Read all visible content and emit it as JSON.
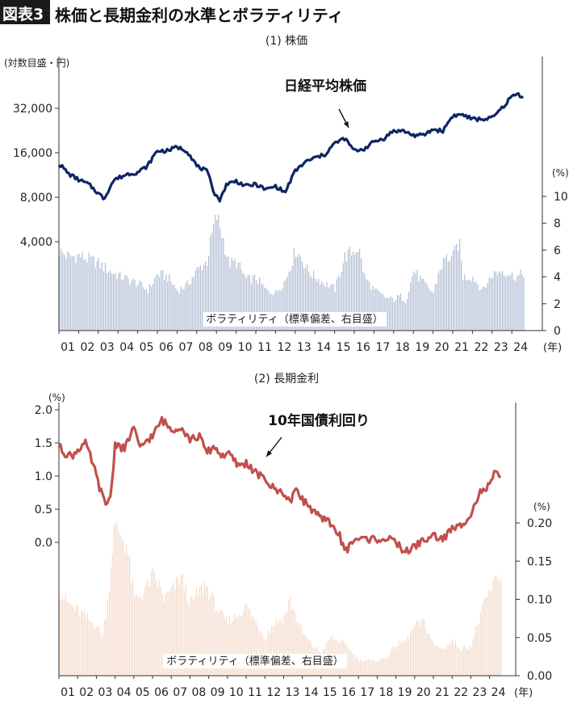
{
  "header": {
    "badge": "図表3",
    "title": "株価と長期金利の水準とボラティリティ"
  },
  "colors": {
    "stock_line": "#0d2563",
    "stock_bars": "#aab8d0",
    "rate_line": "#c0504d",
    "rate_bars": "#f3d9c8"
  },
  "chart_data": [
    {
      "type": "line",
      "title": "(1) 株価",
      "y_unit_label": "(対数目盛・円)",
      "y_scale": "log",
      "y_ticks": [
        "32,000",
        "16,000",
        "8,000",
        "4,000"
      ],
      "y_tick_values": [
        32000,
        16000,
        8000,
        4000
      ],
      "y_right_unit": "(%)",
      "y_right_ticks": [
        "10",
        "8",
        "6",
        "4",
        "2",
        "0"
      ],
      "y_right_range": [
        0,
        10
      ],
      "x_ticks": [
        "01",
        "02",
        "03",
        "04",
        "05",
        "06",
        "07",
        "08",
        "09",
        "10",
        "11",
        "12",
        "13",
        "14",
        "15",
        "16",
        "17",
        "18",
        "19",
        "20",
        "21",
        "22",
        "23",
        "24"
      ],
      "x_unit": "(年)",
      "line_label": "日経平均株価",
      "bar_label": "ボラティリティ（標準偏差、右目盛）",
      "x": [
        2001.0,
        2001.5,
        2002.0,
        2002.5,
        2003.0,
        2003.3,
        2003.8,
        2004.5,
        2005.0,
        2005.5,
        2006.0,
        2006.5,
        2007.0,
        2007.5,
        2008.0,
        2008.5,
        2008.9,
        2009.2,
        2009.5,
        2010.0,
        2010.5,
        2011.0,
        2011.5,
        2012.0,
        2012.5,
        2013.0,
        2013.5,
        2014.0,
        2014.5,
        2015.0,
        2015.5,
        2016.0,
        2016.5,
        2017.0,
        2017.5,
        2018.0,
        2018.5,
        2019.0,
        2019.5,
        2020.0,
        2020.5,
        2021.0,
        2021.5,
        2022.0,
        2022.5,
        2023.0,
        2023.5,
        2024.0,
        2024.3,
        2024.7
      ],
      "values": [
        13500,
        11500,
        10500,
        9800,
        8500,
        7800,
        10500,
        11500,
        11800,
        13000,
        16500,
        16500,
        17500,
        16500,
        13000,
        12000,
        8500,
        7600,
        9800,
        10300,
        9500,
        9800,
        9000,
        9500,
        8600,
        12000,
        13800,
        14800,
        15500,
        18500,
        20000,
        16500,
        17000,
        19000,
        20000,
        22500,
        22500,
        21000,
        21000,
        23000,
        22500,
        28500,
        29000,
        27000,
        27000,
        27500,
        32000,
        38500,
        40000,
        37500
      ],
      "volatility_x": [
        2001.0,
        2001.5,
        2002.0,
        2002.5,
        2003.0,
        2003.5,
        2004.0,
        2004.5,
        2005.0,
        2005.5,
        2006.0,
        2006.5,
        2007.0,
        2007.5,
        2008.0,
        2008.5,
        2008.8,
        2009.0,
        2009.3,
        2009.6,
        2010.0,
        2010.5,
        2011.0,
        2011.5,
        2012.0,
        2012.5,
        2013.0,
        2013.3,
        2013.6,
        2014.0,
        2014.5,
        2015.0,
        2015.5,
        2015.8,
        2016.2,
        2016.5,
        2017.0,
        2017.5,
        2018.0,
        2018.3,
        2018.6,
        2019.0,
        2019.5,
        2020.0,
        2020.3,
        2020.6,
        2021.0,
        2021.3,
        2021.5,
        2022.0,
        2022.5,
        2023.0,
        2023.5,
        2024.0,
        2024.3,
        2024.7
      ],
      "volatility_values": [
        5.9,
        5.5,
        5.6,
        5.3,
        5.0,
        4.5,
        4.1,
        3.8,
        3.5,
        3.0,
        4.2,
        4.0,
        3.0,
        3.4,
        4.5,
        5.2,
        7.5,
        8.5,
        7.0,
        5.0,
        5.1,
        3.8,
        3.9,
        3.0,
        2.8,
        3.8,
        6.0,
        5.4,
        4.5,
        4.0,
        3.5,
        3.1,
        5.5,
        5.8,
        6.2,
        4.0,
        3.0,
        2.5,
        2.3,
        2.6,
        2.2,
        4.5,
        3.5,
        2.8,
        4.5,
        5.4,
        5.5,
        6.7,
        4.0,
        4.0,
        3.0,
        4.2,
        4.5,
        4.1,
        4.0,
        4.5
      ]
    },
    {
      "type": "line",
      "title": "(2) 長期金利",
      "y_unit_label": "(%)",
      "y_ticks": [
        "2.0",
        "1.5",
        "1.0",
        "0.5",
        "0.0"
      ],
      "y_tick_values": [
        2.0,
        1.5,
        1.0,
        0.5,
        0.0
      ],
      "y_right_unit": "(%)",
      "y_right_ticks": [
        "0.20",
        "0.15",
        "0.10",
        "0.05",
        "0.00"
      ],
      "y_right_range": [
        0,
        0.2
      ],
      "x_ticks": [
        "01",
        "02",
        "03",
        "04",
        "05",
        "06",
        "07",
        "08",
        "09",
        "10",
        "11",
        "12",
        "13",
        "14",
        "15",
        "16",
        "17",
        "18",
        "19",
        "20",
        "21",
        "22",
        "23",
        "24"
      ],
      "x_unit": "(年)",
      "line_label": "10年国債利回り",
      "bar_label": "ボラティリティ（標準偏差、右目盛）",
      "x": [
        2001.0,
        2001.3,
        2001.7,
        2002.0,
        2002.4,
        2002.8,
        2003.2,
        2003.5,
        2003.8,
        2004.0,
        2004.5,
        2005.0,
        2005.3,
        2005.7,
        2006.0,
        2006.5,
        2007.0,
        2007.5,
        2008.0,
        2008.5,
        2008.9,
        2009.3,
        2009.7,
        2010.0,
        2010.6,
        2011.0,
        2011.5,
        2012.0,
        2012.5,
        2013.0,
        2013.4,
        2013.7,
        2014.0,
        2014.5,
        2015.0,
        2015.5,
        2016.0,
        2016.1,
        2016.4,
        2016.8,
        2017.5,
        2018.0,
        2018.5,
        2019.0,
        2019.5,
        2019.8,
        2020.3,
        2021.0,
        2021.5,
        2022.0,
        2022.5,
        2023.0,
        2023.5,
        2024.0,
        2024.3,
        2024.7
      ],
      "values": [
        1.45,
        1.35,
        1.3,
        1.4,
        1.5,
        1.2,
        0.8,
        0.55,
        0.75,
        1.5,
        1.4,
        1.75,
        1.4,
        1.55,
        1.6,
        1.85,
        1.7,
        1.75,
        1.55,
        1.6,
        1.35,
        1.45,
        1.3,
        1.35,
        1.15,
        1.2,
        1.05,
        0.95,
        0.8,
        0.75,
        0.6,
        0.85,
        0.65,
        0.5,
        0.35,
        0.3,
        0.1,
        -0.05,
        -0.1,
        0.05,
        0.05,
        0.05,
        0.05,
        0.0,
        -0.15,
        -0.1,
        0.0,
        0.1,
        0.05,
        0.2,
        0.25,
        0.45,
        0.75,
        0.85,
        1.05,
        0.95
      ],
      "volatility_x": [
        2001.0,
        2001.3,
        2001.7,
        2002.0,
        2002.5,
        2003.0,
        2003.3,
        2003.6,
        2003.9,
        2004.2,
        2004.6,
        2005.0,
        2005.5,
        2006.0,
        2006.3,
        2006.6,
        2007.0,
        2007.5,
        2008.0,
        2008.5,
        2008.8,
        2009.2,
        2009.6,
        2010.0,
        2010.5,
        2011.0,
        2011.5,
        2012.0,
        2012.5,
        2013.0,
        2013.3,
        2013.6,
        2014.0,
        2014.5,
        2015.0,
        2015.5,
        2016.0,
        2016.5,
        2017.0,
        2017.5,
        2018.0,
        2018.5,
        2019.0,
        2019.5,
        2020.0,
        2020.5,
        2021.0,
        2021.5,
        2022.0,
        2022.5,
        2023.0,
        2023.5,
        2023.8,
        2024.0,
        2024.4,
        2024.7
      ],
      "volatility_values": [
        0.11,
        0.1,
        0.09,
        0.085,
        0.075,
        0.065,
        0.05,
        0.1,
        0.19,
        0.19,
        0.17,
        0.1,
        0.11,
        0.13,
        0.12,
        0.1,
        0.11,
        0.13,
        0.095,
        0.11,
        0.12,
        0.1,
        0.08,
        0.07,
        0.08,
        0.09,
        0.07,
        0.05,
        0.07,
        0.075,
        0.1,
        0.08,
        0.055,
        0.04,
        0.03,
        0.05,
        0.045,
        0.035,
        0.02,
        0.02,
        0.02,
        0.025,
        0.04,
        0.045,
        0.065,
        0.07,
        0.04,
        0.035,
        0.045,
        0.035,
        0.04,
        0.08,
        0.1,
        0.11,
        0.13,
        0.13
      ]
    }
  ]
}
